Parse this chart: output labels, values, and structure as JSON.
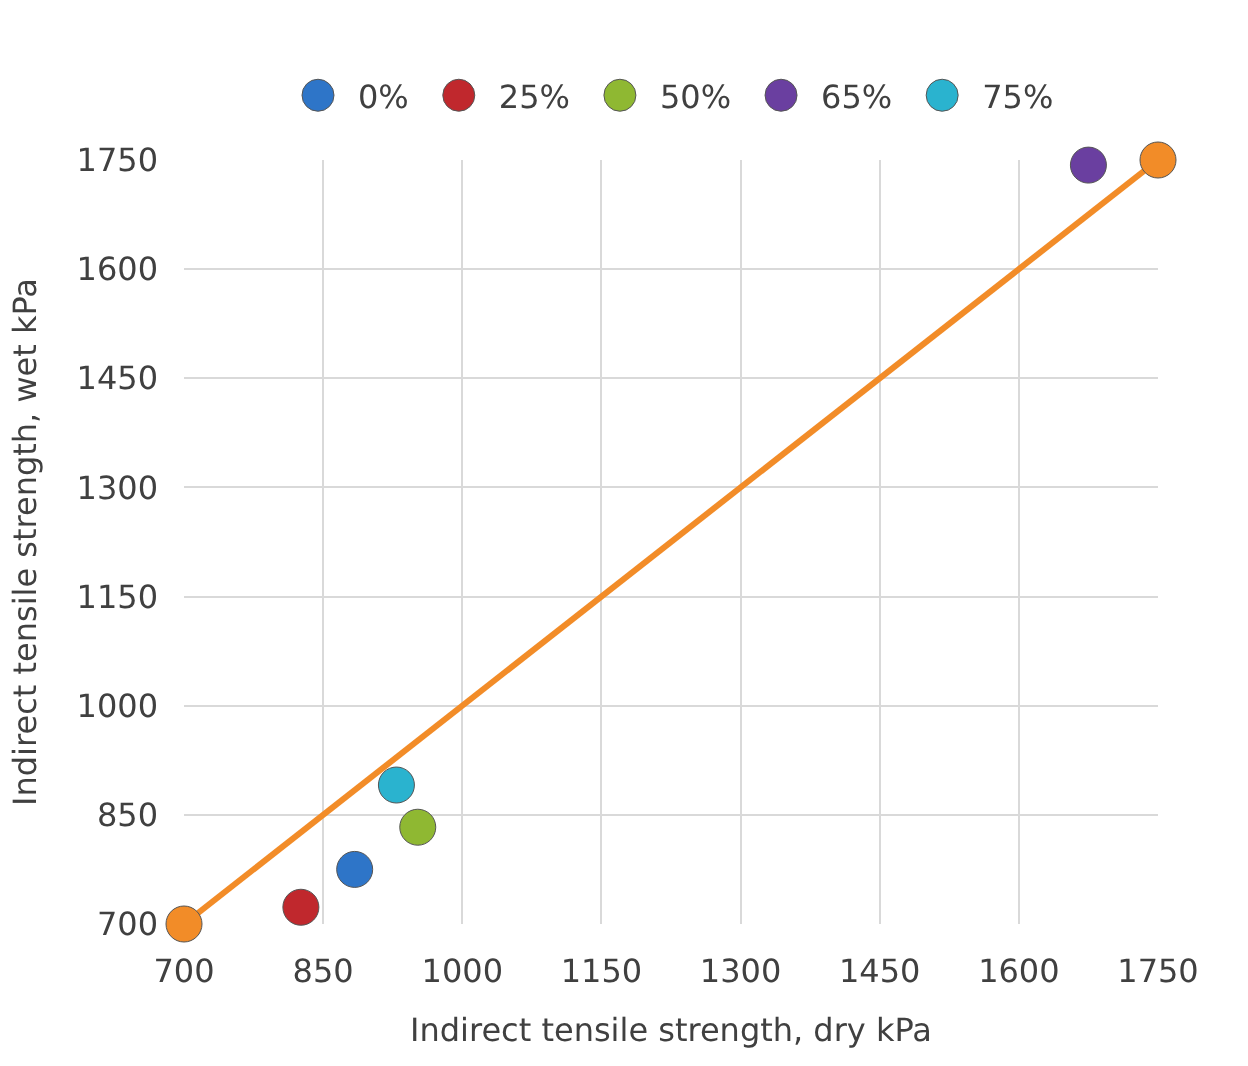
{
  "chart_data": {
    "type": "scatter",
    "xlabel": "Indirect tensile strength, dry kPa",
    "ylabel": "Indirect tensile strength, wet kPa",
    "series": [
      {
        "name": "0%",
        "color": "#2e75c8",
        "x": [
          884
        ],
        "values": [
          775
        ]
      },
      {
        "name": "25%",
        "color": "#c0282d",
        "x": [
          826
        ],
        "values": [
          723
        ]
      },
      {
        "name": "50%",
        "color": "#8fb832",
        "x": [
          952
        ],
        "values": [
          833
        ]
      },
      {
        "name": "65%",
        "color": "#6a3fa0",
        "x": [
          1675
        ],
        "values": [
          1743
        ]
      },
      {
        "name": "75%",
        "color": "#2ab3cf",
        "x": [
          929
        ],
        "values": [
          891
        ]
      },
      {
        "type": "line",
        "color": "#f28c28",
        "x": [
          700,
          1750
        ],
        "values": [
          700,
          1750
        ]
      }
    ],
    "xlim": [
      700,
      1750
    ],
    "ylim": [
      700,
      1750
    ],
    "xticks": [
      700,
      850,
      1000,
      1150,
      1300,
      1450,
      1600,
      1750
    ],
    "yticks": [
      700,
      850,
      1000,
      1150,
      1300,
      1450,
      1600,
      1750
    ],
    "grid": true,
    "legend": "top",
    "marker": "circle"
  }
}
